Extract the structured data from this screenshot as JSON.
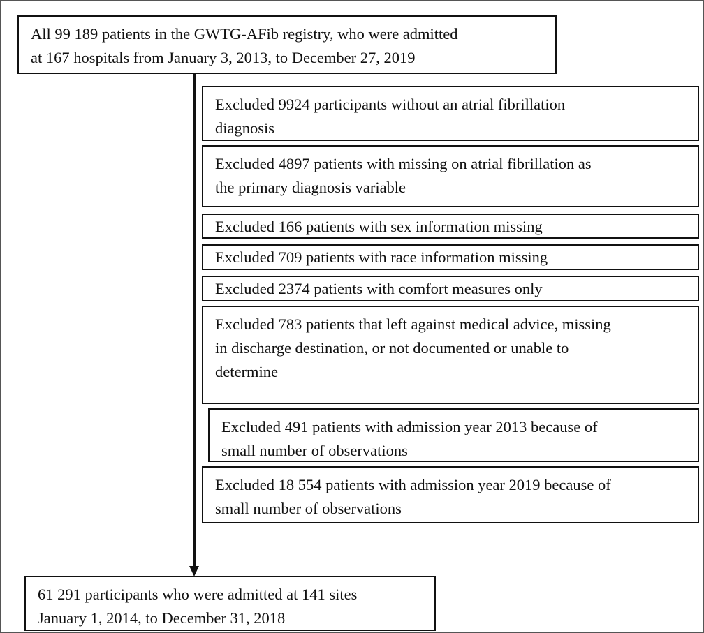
{
  "top_box": {
    "lines": [
      "All 99 189 patients in the GWTG-AFib registry, who were admitted",
      "at 167 hospitals from January 3, 2013,  to December 27, 2019"
    ]
  },
  "exclusions": [
    {
      "lines": [
        "Excluded 9924 participants without an atrial fibrillation",
        "diagnosis"
      ]
    },
    {
      "lines": [
        "Excluded 4897 patients with missing on atrial fibrillation as",
        "the primary diagnosis variable"
      ]
    },
    {
      "lines": [
        "Excluded 166 patients with sex information missing"
      ]
    },
    {
      "lines": [
        "Excluded 709 patients with race information missing"
      ]
    },
    {
      "lines": [
        "Excluded 2374 patients with comfort measures only"
      ]
    },
    {
      "lines": [
        "Excluded 783 patients that left against medical advice, missing",
        "in discharge destination, or not documented or unable to",
        "determine"
      ]
    },
    {
      "lines": [
        "Excluded 491 patients with admission year 2013 because of",
        "small number of observations"
      ]
    },
    {
      "lines": [
        "Excluded 18 554 patients with admission year 2019 because of",
        "small number of observations"
      ]
    }
  ],
  "bottom_box": {
    "lines": [
      "61 291 participants who were admitted at 141 sites",
      "January 1, 2014, to December 31, 2018"
    ]
  }
}
